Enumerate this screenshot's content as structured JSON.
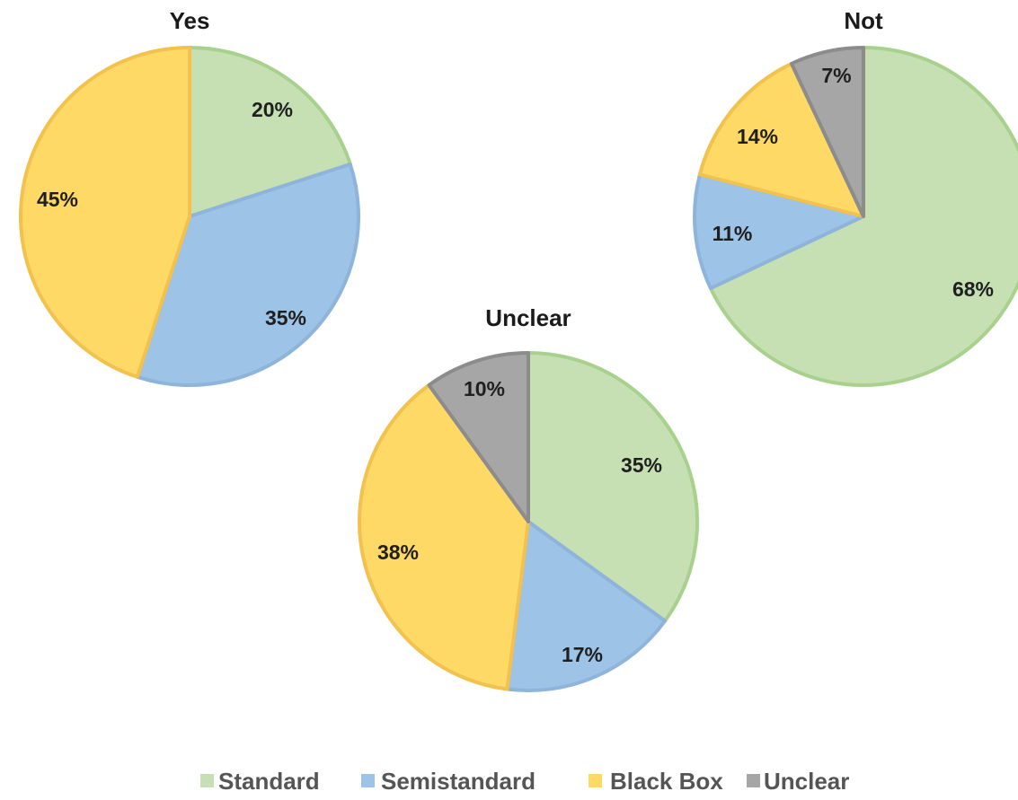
{
  "chart_data": [
    {
      "type": "pie",
      "title": "Yes",
      "categories": [
        "Standard",
        "Semistandard",
        "Black Box",
        "Unclear"
      ],
      "values": [
        20,
        35,
        45,
        0
      ],
      "labels": [
        "20%",
        "35%",
        "45%",
        ""
      ]
    },
    {
      "type": "pie",
      "title": "Not",
      "categories": [
        "Standard",
        "Semistandard",
        "Black Box",
        "Unclear"
      ],
      "values": [
        68,
        11,
        14,
        7
      ],
      "labels": [
        "68%",
        "11%",
        "14%",
        "7%"
      ]
    },
    {
      "type": "pie",
      "title": "Unclear",
      "categories": [
        "Standard",
        "Semistandard",
        "Black Box",
        "Unclear"
      ],
      "values": [
        35,
        17,
        38,
        10
      ],
      "labels": [
        "35%",
        "17%",
        "38%",
        "10%"
      ]
    }
  ],
  "legend": {
    "position": "bottom",
    "items": [
      {
        "label": "Standard",
        "color": "#c6e0b4",
        "stroke": "#a9d18e"
      },
      {
        "label": "Semistandard",
        "color": "#9dc3e6",
        "stroke": "#8fb4dc"
      },
      {
        "label": "Black Box",
        "color": "#ffd966",
        "stroke": "#f2c14e"
      },
      {
        "label": "Unclear",
        "color": "#a6a6a6",
        "stroke": "#8c8c8c"
      }
    ]
  }
}
